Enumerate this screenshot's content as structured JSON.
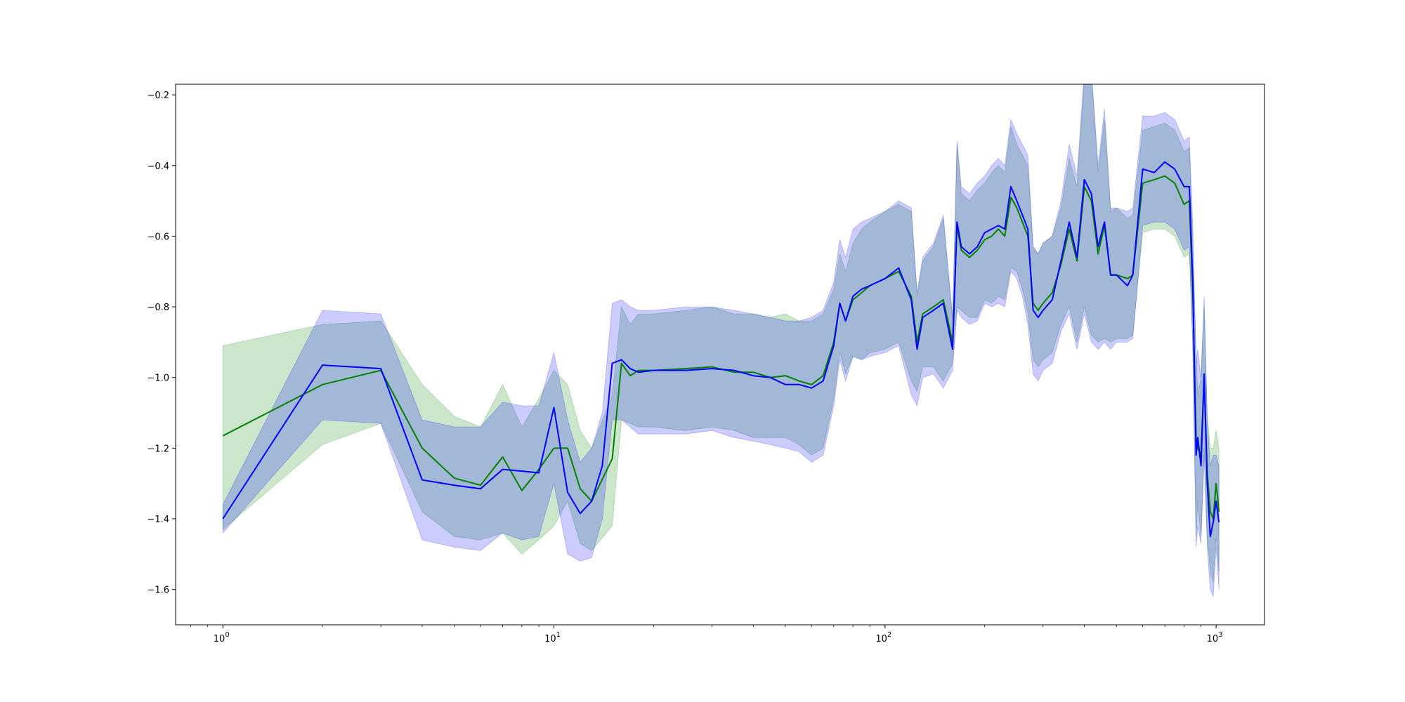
{
  "chart_data": {
    "type": "line",
    "title": "",
    "xlabel": "",
    "ylabel": "",
    "xscale": "log",
    "xlim": [
      0.72,
      1400
    ],
    "ylim": [
      -1.7,
      -0.17
    ],
    "grid": false,
    "legend": "none",
    "x_ticks": [
      {
        "value": 1,
        "base": "10",
        "exp": "0"
      },
      {
        "value": 10,
        "base": "10",
        "exp": "1"
      },
      {
        "value": 100,
        "base": "10",
        "exp": "2"
      },
      {
        "value": 1000,
        "base": "10",
        "exp": "3"
      }
    ],
    "y_ticks": [
      {
        "value": -0.2,
        "label": "−0.2"
      },
      {
        "value": -0.4,
        "label": "−0.4"
      },
      {
        "value": -0.6,
        "label": "−0.6"
      },
      {
        "value": -0.8,
        "label": "−0.8"
      },
      {
        "value": -1.0,
        "label": "−1.0"
      },
      {
        "value": -1.2,
        "label": "−1.2"
      },
      {
        "value": -1.4,
        "label": "−1.4"
      },
      {
        "value": -1.6,
        "label": "−1.6"
      }
    ],
    "series": [
      {
        "color": "#008000",
        "band_opacity": 0.2,
        "x": [
          1,
          2,
          3,
          4,
          5,
          6,
          7,
          8,
          9,
          10,
          11,
          12,
          13,
          15,
          16,
          17,
          18,
          20,
          25,
          30,
          35,
          40,
          45,
          50,
          55,
          60,
          65,
          70,
          73,
          76,
          80,
          85,
          90,
          100,
          110,
          120,
          125,
          130,
          140,
          150,
          160,
          165,
          170,
          180,
          190,
          200,
          210,
          220,
          230,
          240,
          250,
          260,
          270,
          280,
          290,
          300,
          320,
          340,
          360,
          380,
          400,
          420,
          440,
          460,
          480,
          500,
          540,
          560,
          600,
          650,
          700,
          750,
          800,
          830,
          850,
          870,
          880,
          900,
          920,
          940,
          960,
          980,
          1000,
          1020
        ],
        "y": [
          -1.165,
          -1.02,
          -0.98,
          -1.2,
          -1.285,
          -1.305,
          -1.225,
          -1.32,
          -1.26,
          -1.2,
          -1.2,
          -1.315,
          -1.35,
          -1.23,
          -0.96,
          -0.995,
          -0.98,
          -0.98,
          -0.975,
          -0.97,
          -0.985,
          -0.985,
          -1.0,
          -0.995,
          -1.01,
          -1.02,
          -0.995,
          -0.9,
          -0.79,
          -0.84,
          -0.78,
          -0.76,
          -0.74,
          -0.72,
          -0.7,
          -0.77,
          -0.9,
          -0.82,
          -0.8,
          -0.78,
          -0.9,
          -0.57,
          -0.64,
          -0.66,
          -0.64,
          -0.61,
          -0.6,
          -0.58,
          -0.6,
          -0.49,
          -0.52,
          -0.56,
          -0.6,
          -0.79,
          -0.81,
          -0.79,
          -0.76,
          -0.68,
          -0.58,
          -0.67,
          -0.46,
          -0.5,
          -0.65,
          -0.57,
          -0.71,
          -0.71,
          -0.72,
          -0.71,
          -0.45,
          -0.44,
          -0.43,
          -0.45,
          -0.51,
          -0.5,
          -0.76,
          -1.17,
          -1.2,
          -1.22,
          -1.0,
          -1.27,
          -1.38,
          -1.4,
          -1.3,
          -1.38
        ],
        "lower": [
          -1.43,
          -1.19,
          -1.13,
          -1.38,
          -1.45,
          -1.46,
          -1.44,
          -1.5,
          -1.46,
          -1.42,
          -1.35,
          -1.47,
          -1.49,
          -1.42,
          -1.12,
          -1.13,
          -1.14,
          -1.14,
          -1.15,
          -1.14,
          -1.15,
          -1.17,
          -1.17,
          -1.17,
          -1.19,
          -1.22,
          -1.2,
          -1.06,
          -0.93,
          -0.99,
          -0.94,
          -0.95,
          -0.93,
          -0.92,
          -0.9,
          -1.01,
          -1.04,
          -0.97,
          -0.97,
          -1.01,
          -0.96,
          -0.8,
          -0.81,
          -0.83,
          -0.83,
          -0.78,
          -0.79,
          -0.77,
          -0.78,
          -0.69,
          -0.7,
          -0.75,
          -0.82,
          -0.95,
          -0.97,
          -0.95,
          -0.93,
          -0.85,
          -0.8,
          -0.9,
          -0.8,
          -0.88,
          -0.9,
          -0.89,
          -0.9,
          -0.89,
          -0.89,
          -0.88,
          -0.59,
          -0.58,
          -0.58,
          -0.6,
          -0.66,
          -0.65,
          -0.9,
          -1.45,
          -1.35,
          -1.45,
          -1.2,
          -1.45,
          -1.55,
          -1.58,
          -1.45,
          -1.55
        ],
        "upper": [
          -0.91,
          -0.85,
          -0.84,
          -1.02,
          -1.11,
          -1.14,
          -1.02,
          -1.14,
          -1.06,
          -0.98,
          -1.02,
          -1.15,
          -1.2,
          -1.05,
          -0.8,
          -0.85,
          -0.82,
          -0.82,
          -0.81,
          -0.8,
          -0.82,
          -0.82,
          -0.83,
          -0.82,
          -0.84,
          -0.84,
          -0.82,
          -0.75,
          -0.65,
          -0.7,
          -0.62,
          -0.58,
          -0.56,
          -0.53,
          -0.51,
          -0.53,
          -0.77,
          -0.67,
          -0.63,
          -0.55,
          -0.84,
          -0.34,
          -0.48,
          -0.5,
          -0.47,
          -0.45,
          -0.42,
          -0.4,
          -0.42,
          -0.29,
          -0.34,
          -0.37,
          -0.4,
          -0.63,
          -0.65,
          -0.62,
          -0.6,
          -0.52,
          -0.38,
          -0.46,
          -0.15,
          -0.14,
          -0.42,
          -0.27,
          -0.53,
          -0.52,
          -0.55,
          -0.54,
          -0.3,
          -0.29,
          -0.28,
          -0.3,
          -0.36,
          -0.35,
          -0.62,
          -0.92,
          -1.05,
          -1.0,
          -0.8,
          -1.1,
          -1.2,
          -1.2,
          -1.15,
          -1.2
        ]
      },
      {
        "color": "#0000ff",
        "band_opacity": 0.2,
        "x": [
          1,
          2,
          3,
          4,
          5,
          6,
          7,
          8,
          9,
          10,
          11,
          12,
          13,
          14,
          15,
          16,
          17,
          18,
          20,
          25,
          30,
          35,
          40,
          45,
          50,
          55,
          60,
          65,
          70,
          73,
          76,
          80,
          85,
          90,
          100,
          110,
          120,
          125,
          130,
          140,
          150,
          160,
          165,
          170,
          180,
          190,
          200,
          210,
          220,
          230,
          240,
          250,
          260,
          270,
          280,
          290,
          300,
          320,
          340,
          360,
          380,
          400,
          420,
          440,
          460,
          480,
          500,
          540,
          560,
          600,
          650,
          700,
          750,
          800,
          830,
          850,
          870,
          880,
          900,
          920,
          940,
          960,
          980,
          1000,
          1020
        ],
        "y": [
          -1.4,
          -0.965,
          -0.975,
          -1.29,
          -1.305,
          -1.315,
          -1.26,
          -1.265,
          -1.27,
          -1.085,
          -1.325,
          -1.385,
          -1.35,
          -1.25,
          -0.96,
          -0.95,
          -0.975,
          -0.985,
          -0.98,
          -0.98,
          -0.975,
          -0.98,
          -0.995,
          -1.0,
          -1.02,
          -1.02,
          -1.03,
          -1.01,
          -0.91,
          -0.79,
          -0.84,
          -0.77,
          -0.75,
          -0.74,
          -0.72,
          -0.69,
          -0.78,
          -0.92,
          -0.83,
          -0.81,
          -0.79,
          -0.92,
          -0.56,
          -0.63,
          -0.65,
          -0.63,
          -0.59,
          -0.58,
          -0.57,
          -0.58,
          -0.46,
          -0.5,
          -0.54,
          -0.58,
          -0.81,
          -0.83,
          -0.81,
          -0.78,
          -0.67,
          -0.56,
          -0.66,
          -0.44,
          -0.48,
          -0.63,
          -0.56,
          -0.71,
          -0.71,
          -0.74,
          -0.71,
          -0.41,
          -0.42,
          -0.39,
          -0.41,
          -0.46,
          -0.46,
          -0.73,
          -1.22,
          -1.17,
          -1.25,
          -0.99,
          -1.3,
          -1.45,
          -1.41,
          -1.35,
          -1.41
        ],
        "lower": [
          -1.44,
          -1.12,
          -1.13,
          -1.46,
          -1.48,
          -1.49,
          -1.44,
          -1.46,
          -1.45,
          -1.3,
          -1.5,
          -1.52,
          -1.51,
          -1.4,
          -1.12,
          -1.12,
          -1.14,
          -1.16,
          -1.16,
          -1.16,
          -1.15,
          -1.17,
          -1.18,
          -1.19,
          -1.2,
          -1.21,
          -1.24,
          -1.22,
          -1.08,
          -0.95,
          -1.01,
          -0.94,
          -0.95,
          -0.94,
          -0.93,
          -0.91,
          -1.05,
          -1.08,
          -1.0,
          -0.99,
          -1.03,
          -0.98,
          -0.81,
          -0.83,
          -0.85,
          -0.84,
          -0.79,
          -0.8,
          -0.79,
          -0.8,
          -0.7,
          -0.72,
          -0.77,
          -0.85,
          -0.99,
          -1.01,
          -0.98,
          -0.96,
          -0.87,
          -0.82,
          -0.92,
          -0.82,
          -0.9,
          -0.92,
          -0.9,
          -0.92,
          -0.9,
          -0.9,
          -0.89,
          -0.57,
          -0.56,
          -0.56,
          -0.58,
          -0.64,
          -0.63,
          -0.92,
          -1.48,
          -1.42,
          -1.47,
          -1.22,
          -1.48,
          -1.6,
          -1.62,
          -1.48,
          -1.6
        ],
        "upper": [
          -1.36,
          -0.81,
          -0.82,
          -1.12,
          -1.14,
          -1.14,
          -1.07,
          -1.08,
          -1.08,
          -0.93,
          -1.12,
          -1.24,
          -1.2,
          -1.1,
          -0.79,
          -0.78,
          -0.8,
          -0.81,
          -0.81,
          -0.8,
          -0.8,
          -0.81,
          -0.82,
          -0.83,
          -0.84,
          -0.84,
          -0.83,
          -0.81,
          -0.73,
          -0.61,
          -0.66,
          -0.58,
          -0.56,
          -0.55,
          -0.53,
          -0.5,
          -0.52,
          -0.76,
          -0.66,
          -0.62,
          -0.54,
          -0.83,
          -0.33,
          -0.46,
          -0.48,
          -0.45,
          -0.43,
          -0.4,
          -0.38,
          -0.4,
          -0.27,
          -0.31,
          -0.34,
          -0.37,
          -0.63,
          -0.65,
          -0.62,
          -0.6,
          -0.5,
          -0.34,
          -0.43,
          -0.13,
          -0.13,
          -0.4,
          -0.24,
          -0.52,
          -0.52,
          -0.53,
          -0.52,
          -0.26,
          -0.26,
          -0.25,
          -0.27,
          -0.33,
          -0.32,
          -0.57,
          -0.96,
          -0.92,
          -1.0,
          -0.77,
          -1.12,
          -1.25,
          -1.22,
          -1.22,
          -1.25
        ]
      }
    ]
  }
}
